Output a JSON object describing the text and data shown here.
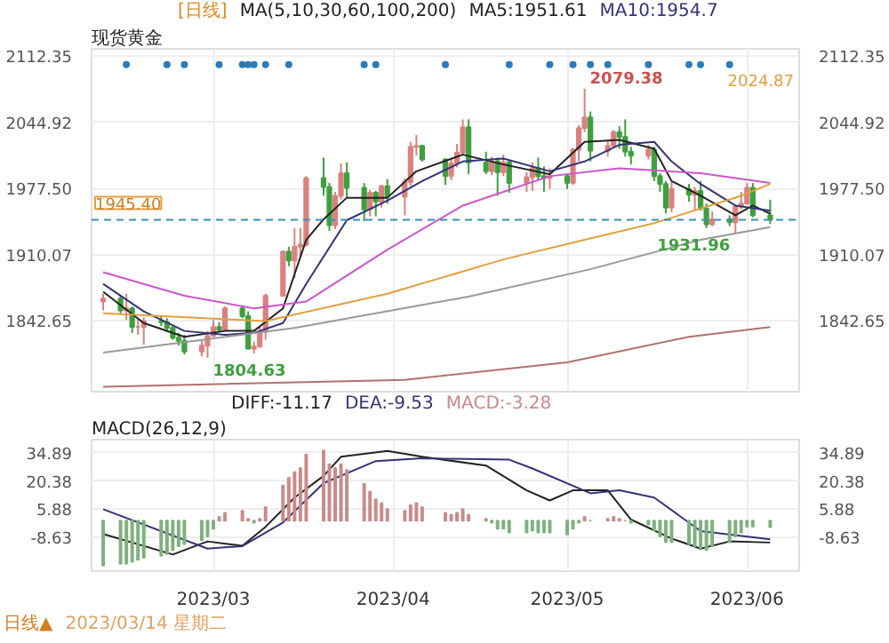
{
  "chart_data": [
    {
      "type": "candlestick",
      "title": "现货黄金",
      "subtitle": "[日线]",
      "x": [
        "2023-02-10",
        "2023-02-13",
        "2023-02-14",
        "2023-02-15",
        "2023-02-16",
        "2023-02-17",
        "2023-02-20",
        "2023-02-21",
        "2023-02-22",
        "2023-02-23",
        "2023-02-24",
        "2023-02-27",
        "2023-02-28",
        "2023-03-01",
        "2023-03-02",
        "2023-03-03",
        "2023-03-06",
        "2023-03-07",
        "2023-03-08",
        "2023-03-09",
        "2023-03-10",
        "2023-03-13",
        "2023-03-14",
        "2023-03-15",
        "2023-03-16",
        "2023-03-17",
        "2023-03-20",
        "2023-03-21",
        "2023-03-22",
        "2023-03-23",
        "2023-03-24",
        "2023-03-27",
        "2023-03-28",
        "2023-03-29",
        "2023-03-30",
        "2023-03-31",
        "2023-04-03",
        "2023-04-04",
        "2023-04-05",
        "2023-04-06",
        "2023-04-10",
        "2023-04-11",
        "2023-04-12",
        "2023-04-13",
        "2023-04-14",
        "2023-04-17",
        "2023-04-18",
        "2023-04-19",
        "2023-04-20",
        "2023-04-21",
        "2023-04-24",
        "2023-04-25",
        "2023-04-26",
        "2023-04-27",
        "2023-04-28",
        "2023-05-01",
        "2023-05-02",
        "2023-05-03",
        "2023-05-04",
        "2023-05-05",
        "2023-05-08",
        "2023-05-09",
        "2023-05-10",
        "2023-05-11",
        "2023-05-12",
        "2023-05-15",
        "2023-05-16",
        "2023-05-17",
        "2023-05-18",
        "2023-05-19",
        "2023-05-22",
        "2023-05-23",
        "2023-05-24",
        "2023-05-25",
        "2023-05-26",
        "2023-05-29",
        "2023-05-30",
        "2023-05-31",
        "2023-06-01",
        "2023-06-02",
        "2023-06-05"
      ],
      "ohlc": [
        [
          1862,
          1870,
          1853,
          1865
        ],
        [
          1865,
          1868,
          1850,
          1853
        ],
        [
          1853,
          1870,
          1843,
          1855
        ],
        [
          1855,
          1857,
          1830,
          1836
        ],
        [
          1836,
          1844,
          1828,
          1836
        ],
        [
          1836,
          1846,
          1818,
          1842
        ],
        [
          1842,
          1847,
          1837,
          1841
        ],
        [
          1841,
          1845,
          1831,
          1835
        ],
        [
          1835,
          1837,
          1823,
          1825
        ],
        [
          1825,
          1830,
          1817,
          1822
        ],
        [
          1822,
          1828,
          1808,
          1811
        ],
        [
          1811,
          1822,
          1806,
          1817
        ],
        [
          1817,
          1832,
          1804.63,
          1827
        ],
        [
          1827,
          1843,
          1826,
          1836
        ],
        [
          1836,
          1841,
          1831,
          1833
        ],
        [
          1833,
          1857,
          1832,
          1855
        ],
        [
          1855,
          1858,
          1845,
          1847
        ],
        [
          1847,
          1852,
          1813,
          1814
        ],
        [
          1814,
          1821,
          1809,
          1816
        ],
        [
          1816,
          1836,
          1815,
          1831
        ],
        [
          1831,
          1870,
          1823,
          1868
        ],
        [
          1868,
          1914,
          1867,
          1913
        ],
        [
          1913,
          1918,
          1898,
          1904
        ],
        [
          1904,
          1937,
          1886,
          1918
        ],
        [
          1918,
          1937,
          1907,
          1920
        ],
        [
          1920,
          1990,
          1918,
          1988
        ],
        [
          1988,
          2009,
          1970,
          1979
        ],
        [
          1979,
          1983,
          1934,
          1940
        ],
        [
          1940,
          1974,
          1936,
          1970
        ],
        [
          1970,
          2003,
          1966,
          1993
        ],
        [
          1993,
          2004,
          1968,
          1978
        ],
        [
          1978,
          1983,
          1944,
          1956
        ],
        [
          1956,
          1976,
          1949,
          1973
        ],
        [
          1973,
          1975,
          1949,
          1964
        ],
        [
          1964,
          1981,
          1958,
          1980
        ],
        [
          1980,
          1987,
          1962,
          1969
        ],
        [
          1969,
          1988,
          1950,
          1984
        ],
        [
          1984,
          2025,
          1980,
          2020
        ],
        [
          2020,
          2032,
          2011,
          2021
        ],
        [
          2021,
          2022,
          2005,
          2007
        ],
        [
          2007,
          2008,
          1981,
          1990
        ],
        [
          1990,
          2008,
          1986,
          2003
        ],
        [
          2003,
          2023,
          1999,
          2014
        ],
        [
          2014,
          2048,
          2012,
          2040
        ],
        [
          2040,
          2048,
          1992,
          2004
        ],
        [
          2004,
          2015,
          1992,
          1995
        ],
        [
          1995,
          2010,
          1991,
          2005
        ],
        [
          2005,
          2009,
          1970,
          1994
        ],
        [
          1994,
          2012,
          1990,
          2004
        ],
        [
          2004,
          2006,
          1973,
          1983
        ],
        [
          1983,
          1994,
          1974,
          1989
        ],
        [
          1989,
          2004,
          1975,
          1998
        ],
        [
          1998,
          2009,
          1986,
          1990
        ],
        [
          1990,
          2000,
          1974,
          1988
        ],
        [
          1988,
          1998,
          1977,
          1990
        ],
        [
          1990,
          1992,
          1977,
          1983
        ],
        [
          1983,
          2019,
          1981,
          2017
        ],
        [
          2017,
          2042,
          2005,
          2039
        ],
        [
          2039,
          2079.38,
          2035,
          2050
        ],
        [
          2050,
          2056,
          2005,
          2016
        ],
        [
          2016,
          2026,
          2010,
          2021
        ],
        [
          2021,
          2037,
          2019,
          2035
        ],
        [
          2035,
          2041,
          2018,
          2030
        ],
        [
          2030,
          2048,
          2010,
          2015
        ],
        [
          2015,
          2020,
          2002,
          2011
        ],
        [
          2011,
          2022,
          2007,
          2017
        ],
        [
          2017,
          2020,
          1985,
          1990
        ],
        [
          1990,
          1993,
          1974,
          1982
        ],
        [
          1982,
          1985,
          1952,
          1958
        ],
        [
          1958,
          1984,
          1953,
          1977
        ],
        [
          1977,
          1982,
          1964,
          1971
        ],
        [
          1971,
          1979,
          1955,
          1975
        ],
        [
          1975,
          1985,
          1955,
          1957
        ],
        [
          1957,
          1962,
          1937,
          1941
        ],
        [
          1941,
          1954,
          1939,
          1946
        ],
        [
          1946,
          1950,
          1939,
          1943
        ],
        [
          1943,
          1961,
          1931.96,
          1959
        ],
        [
          1959,
          1974,
          1956,
          1962
        ],
        [
          1962,
          1983,
          1961,
          1978
        ],
        [
          1978,
          1983,
          1948,
          1950
        ],
        [
          1950,
          1966,
          1941,
          1945.4
        ]
      ],
      "series": [
        {
          "name": "MA5:1951.61",
          "type": "line",
          "color": "#222222",
          "x": [
            "2023-02-10",
            "2023-02-17",
            "2023-02-24",
            "2023-03-03",
            "2023-03-08",
            "2023-03-13",
            "2023-03-17",
            "2023-03-20",
            "2023-03-24",
            "2023-03-31",
            "2023-04-05",
            "2023-04-13",
            "2023-04-20",
            "2023-04-28",
            "2023-05-04",
            "2023-05-10",
            "2023-05-16",
            "2023-05-19",
            "2023-05-24",
            "2023-05-30",
            "2023-06-02",
            "2023-06-05"
          ],
          "values": [
            1872,
            1840,
            1826,
            1832,
            1832,
            1855,
            1925,
            1946,
            1968,
            1968,
            1995,
            2012,
            2002,
            1992,
            2025,
            2027,
            2018,
            1985,
            1970,
            1950,
            1960,
            1951.61
          ]
        },
        {
          "name": "MA10:1954.7",
          "type": "line",
          "color": "#333377",
          "x": [
            "2023-02-10",
            "2023-02-17",
            "2023-02-24",
            "2023-03-03",
            "2023-03-08",
            "2023-03-13",
            "2023-03-17",
            "2023-03-24",
            "2023-03-31",
            "2023-04-06",
            "2023-04-13",
            "2023-04-20",
            "2023-04-28",
            "2023-05-04",
            "2023-05-10",
            "2023-05-16",
            "2023-05-19",
            "2023-05-24",
            "2023-05-30",
            "2023-06-05"
          ],
          "values": [
            1880,
            1852,
            1832,
            1828,
            1830,
            1840,
            1880,
            1945,
            1965,
            1985,
            2005,
            2008,
            1995,
            2005,
            2022,
            2025,
            2005,
            1982,
            1960,
            1954.7
          ]
        },
        {
          "type": "line",
          "color": "#cc55cc",
          "x": [
            "2023-02-10",
            "2023-02-24",
            "2023-03-08",
            "2023-03-17",
            "2023-03-31",
            "2023-04-13",
            "2023-04-28",
            "2023-05-10",
            "2023-05-24",
            "2023-06-05"
          ],
          "values": [
            1892,
            1868,
            1855,
            1862,
            1915,
            1960,
            1990,
            1998,
            1993,
            1983
          ]
        },
        {
          "type": "line",
          "color": "#e0a040",
          "x": [
            "2023-02-10",
            "2023-03-10",
            "2023-03-31",
            "2023-04-20",
            "2023-05-04",
            "2023-05-16",
            "2023-05-31",
            "2023-06-05"
          ],
          "values": [
            1850,
            1842,
            1870,
            1905,
            1925,
            1942,
            1970,
            1982
          ]
        },
        {
          "type": "line",
          "color": "#999999",
          "x": [
            "2023-02-10",
            "2023-03-15",
            "2023-04-14",
            "2023-05-05",
            "2023-05-24",
            "2023-06-05"
          ],
          "values": [
            1810,
            1835,
            1867,
            1895,
            1925,
            1938
          ]
        },
        {
          "type": "line",
          "color": "#b07070",
          "x": [
            "2023-02-10",
            "2023-04-03",
            "2023-05-01",
            "2023-05-22",
            "2023-06-05"
          ],
          "values": [
            1775,
            1782,
            1800,
            1826,
            1836
          ]
        },
        {
          "type": "scatter",
          "color": "#2b7bb9",
          "marker": "circle",
          "x": [
            "2023-02-14",
            "2023-02-21",
            "2023-02-24",
            "2023-03-02",
            "2023-03-06",
            "2023-03-07",
            "2023-03-08",
            "2023-03-10",
            "2023-03-14",
            "2023-03-27",
            "2023-03-29",
            "2023-04-10",
            "2023-04-21",
            "2023-04-28",
            "2023-05-02",
            "2023-05-05",
            "2023-05-08",
            "2023-05-15",
            "2023-05-22",
            "2023-05-24",
            "2023-05-29"
          ],
          "values": [
            2104,
            2104,
            2104,
            2104,
            2104,
            2104,
            2104,
            2104,
            2104,
            2104,
            2104,
            2104,
            2104,
            2104,
            2104,
            2104,
            2104,
            2104,
            2104,
            2104,
            2104
          ]
        }
      ],
      "xlim": [
        "2023-02-08",
        "2023-06-10"
      ],
      "xticks": [
        {
          "value": "2023-03-01",
          "label": null
        },
        {
          "value": "2023-04-01",
          "label": null
        },
        {
          "value": "2023-05-01",
          "label": null
        },
        {
          "value": "2023-06-01",
          "label": null
        }
      ],
      "ylim": [
        1770,
        2120
      ],
      "yticks": [
        {
          "value": 1842.65,
          "label": "1842.65"
        },
        {
          "value": 1910.07,
          "label": "1910.07"
        },
        {
          "value": 1977.5,
          "label": "1977.50"
        },
        {
          "value": 2044.92,
          "label": "2044.92"
        },
        {
          "value": 2112.35,
          "label": "2112.35"
        }
      ],
      "y2lim": [
        1770,
        2120
      ],
      "y2ticks": [
        {
          "value": 1842.65,
          "label": "1842.65"
        },
        {
          "value": 1910.07,
          "label": "1910.07"
        },
        {
          "value": 1977.5,
          "label": "1977.50"
        },
        {
          "value": 2044.92,
          "label": "2044.92"
        },
        {
          "value": 2112.35,
          "label": "2112.35"
        }
      ],
      "ref_lines": [
        {
          "axis": "y",
          "value": 1945.4,
          "label": "1945.40",
          "color": "#3a8fb7",
          "line_style": "dashed"
        }
      ],
      "annotations": [
        "MA(5,10,30,60,100,200)",
        {
          "text": "2079.38",
          "x": "2023-05-04",
          "y": 2079.38
        },
        {
          "text": "1804.63",
          "x": "2023-02-28",
          "y": 1804.63
        },
        {
          "text": "1931.96",
          "x": "2023-05-30",
          "y": 1931.96
        },
        "2024.87"
      ],
      "grid": true,
      "tick_labels": "y"
    },
    {
      "type": "bar",
      "title": "MACD(26,12,9)",
      "x": [
        "2023-02-10",
        "2023-02-13",
        "2023-02-14",
        "2023-02-15",
        "2023-02-16",
        "2023-02-17",
        "2023-02-20",
        "2023-02-21",
        "2023-02-22",
        "2023-02-23",
        "2023-02-24",
        "2023-02-27",
        "2023-02-28",
        "2023-03-01",
        "2023-03-02",
        "2023-03-03",
        "2023-03-06",
        "2023-03-07",
        "2023-03-08",
        "2023-03-09",
        "2023-03-10",
        "2023-03-13",
        "2023-03-14",
        "2023-03-15",
        "2023-03-16",
        "2023-03-17",
        "2023-03-20",
        "2023-03-21",
        "2023-03-22",
        "2023-03-23",
        "2023-03-24",
        "2023-03-27",
        "2023-03-28",
        "2023-03-29",
        "2023-03-30",
        "2023-03-31",
        "2023-04-03",
        "2023-04-04",
        "2023-04-05",
        "2023-04-06",
        "2023-04-10",
        "2023-04-11",
        "2023-04-12",
        "2023-04-13",
        "2023-04-14",
        "2023-04-17",
        "2023-04-18",
        "2023-04-19",
        "2023-04-20",
        "2023-04-21",
        "2023-04-24",
        "2023-04-25",
        "2023-04-26",
        "2023-04-27",
        "2023-04-28",
        "2023-05-01",
        "2023-05-02",
        "2023-05-03",
        "2023-05-04",
        "2023-05-05",
        "2023-05-08",
        "2023-05-09",
        "2023-05-10",
        "2023-05-11",
        "2023-05-12",
        "2023-05-15",
        "2023-05-16",
        "2023-05-17",
        "2023-05-18",
        "2023-05-19",
        "2023-05-22",
        "2023-05-23",
        "2023-05-24",
        "2023-05-25",
        "2023-05-26",
        "2023-05-29",
        "2023-05-30",
        "2023-05-31",
        "2023-06-01",
        "2023-06-02",
        "2023-06-05"
      ],
      "series": [
        {
          "name": "DIFF:-11.17",
          "type": "line",
          "color": "#222222",
          "x": [
            "2023-02-10",
            "2023-02-22",
            "2023-02-28",
            "2023-03-06",
            "2023-03-10",
            "2023-03-15",
            "2023-03-20",
            "2023-03-23",
            "2023-03-31",
            "2023-04-06",
            "2023-04-17",
            "2023-04-24",
            "2023-04-28",
            "2023-05-02",
            "2023-05-08",
            "2023-05-12",
            "2023-05-19",
            "2023-05-24",
            "2023-05-29",
            "2023-06-05"
          ],
          "values": [
            -6.8,
            -17.3,
            -10.6,
            -12.8,
            -3.1,
            11.9,
            23,
            32.8,
            35.8,
            32.8,
            28.3,
            15.6,
            10.4,
            15.6,
            15.6,
            0.6,
            -9.1,
            -14.3,
            -10.6,
            -11.17
          ]
        },
        {
          "name": "DEA:-9.53",
          "type": "line",
          "color": "#333377",
          "x": [
            "2023-02-10",
            "2023-02-28",
            "2023-03-06",
            "2023-03-13",
            "2023-03-20",
            "2023-03-29",
            "2023-04-06",
            "2023-04-21",
            "2023-04-25",
            "2023-05-05",
            "2023-05-10",
            "2023-05-16",
            "2023-05-24",
            "2023-06-05"
          ],
          "values": [
            5.9,
            -14.3,
            -13,
            -0.9,
            19.3,
            30.6,
            32,
            31.3,
            26.8,
            14.1,
            15.6,
            11.9,
            -5.3,
            -9.53
          ]
        },
        {
          "name": "MACD:-3.28",
          "type": "bar",
          "color": "#c98a8a",
          "values": [
            -23,
            -22,
            -22,
            -21,
            -20,
            -19,
            -18,
            -17,
            -15,
            -13,
            -12,
            -10,
            -8,
            -4,
            2,
            4,
            5,
            1,
            -1,
            1,
            7,
            18,
            22,
            25,
            27,
            34,
            36,
            29,
            27,
            29,
            26,
            19,
            15,
            11,
            9,
            6,
            5,
            8,
            9,
            7,
            4,
            3,
            4,
            6,
            3,
            1,
            -1,
            -4,
            -4,
            -6,
            -6,
            -5,
            -6,
            -6,
            -6,
            -7,
            -4,
            -1,
            2,
            0,
            1,
            2,
            1,
            0,
            -1,
            -2,
            -5,
            -8,
            -11,
            -11,
            -12,
            -13,
            -14,
            -15,
            -13,
            -11,
            -8,
            -6,
            -3,
            -3,
            -3.28
          ],
          "colors": [
            "#7fb07f",
            "#7fb07f",
            "#7fb07f",
            "#7fb07f",
            "#7fb07f",
            "#7fb07f",
            "#7fb07f",
            "#7fb07f",
            "#7fb07f",
            "#7fb07f",
            "#7fb07f",
            "#7fb07f",
            "#7fb07f",
            "#7fb07f",
            "#c98a8a",
            "#c98a8a",
            "#c98a8a",
            "#c98a8a",
            "#7fb07f",
            "#c98a8a",
            "#c98a8a",
            "#c98a8a",
            "#c98a8a",
            "#c98a8a",
            "#c98a8a",
            "#c98a8a",
            "#c98a8a",
            "#c98a8a",
            "#c98a8a",
            "#c98a8a",
            "#c98a8a",
            "#c98a8a",
            "#c98a8a",
            "#c98a8a",
            "#c98a8a",
            "#c98a8a",
            "#c98a8a",
            "#c98a8a",
            "#c98a8a",
            "#c98a8a",
            "#c98a8a",
            "#c98a8a",
            "#c98a8a",
            "#c98a8a",
            "#c98a8a",
            "#c98a8a",
            "#7fb07f",
            "#7fb07f",
            "#7fb07f",
            "#7fb07f",
            "#7fb07f",
            "#7fb07f",
            "#7fb07f",
            "#7fb07f",
            "#7fb07f",
            "#7fb07f",
            "#7fb07f",
            "#7fb07f",
            "#c98a8a",
            "#c98a8a",
            "#c98a8a",
            "#c98a8a",
            "#c98a8a",
            "#c98a8a",
            "#7fb07f",
            "#7fb07f",
            "#7fb07f",
            "#7fb07f",
            "#7fb07f",
            "#7fb07f",
            "#7fb07f",
            "#7fb07f",
            "#7fb07f",
            "#7fb07f",
            "#7fb07f",
            "#7fb07f",
            "#7fb07f",
            "#7fb07f",
            "#7fb07f",
            "#7fb07f",
            "#7fb07f"
          ]
        }
      ],
      "xlim": [
        "2023-02-08",
        "2023-06-10"
      ],
      "xticks": [
        {
          "value": "2023-03-01",
          "label": "2023/03"
        },
        {
          "value": "2023-04-01",
          "label": "2023/04"
        },
        {
          "value": "2023-05-01",
          "label": "2023/05"
        },
        {
          "value": "2023-06-01",
          "label": "2023/06"
        }
      ],
      "ylim": [
        -25.8,
        41.6
      ],
      "yticks": [
        -8.63,
        5.88,
        20.38,
        34.89
      ],
      "y2lim": [
        -25.8,
        41.6
      ],
      "y2ticks": [
        -8.63,
        5.88,
        20.38,
        34.89
      ],
      "annotations": [
        "日线▲",
        "2023/03/14 星期二"
      ],
      "grid": true
    }
  ]
}
